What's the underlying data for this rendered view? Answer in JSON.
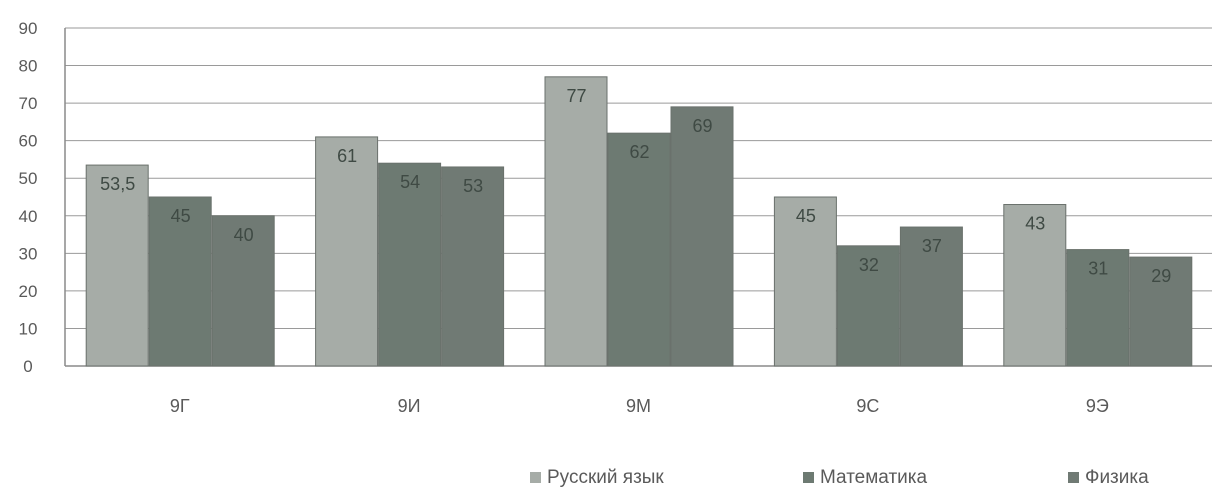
{
  "chart_data": {
    "type": "bar",
    "title": "",
    "xlabel": "",
    "ylabel": "",
    "ylim": [
      0,
      90
    ],
    "yticks": [
      0,
      10,
      20,
      30,
      40,
      50,
      60,
      70,
      80,
      90
    ],
    "grid": true,
    "legend_position": "bottom-right",
    "categories": [
      "9Г",
      "9И",
      "9М",
      "9С",
      "9Э"
    ],
    "series": [
      {
        "name": "Русский язык",
        "color": "#a6aca7",
        "values": [
          53.5,
          61,
          77,
          45,
          43
        ],
        "labels": [
          "53,5",
          "61",
          "77",
          "45",
          "43"
        ]
      },
      {
        "name": "Математика",
        "color": "#6d7a72",
        "values": [
          45,
          54,
          62,
          32,
          31
        ],
        "labels": [
          "45",
          "54",
          "62",
          "32",
          "31"
        ]
      },
      {
        "name": "Физика",
        "color": "#707a74",
        "values": [
          40,
          53,
          69,
          37,
          29
        ],
        "labels": [
          "40",
          "53",
          "69",
          "37",
          "29"
        ]
      }
    ]
  }
}
